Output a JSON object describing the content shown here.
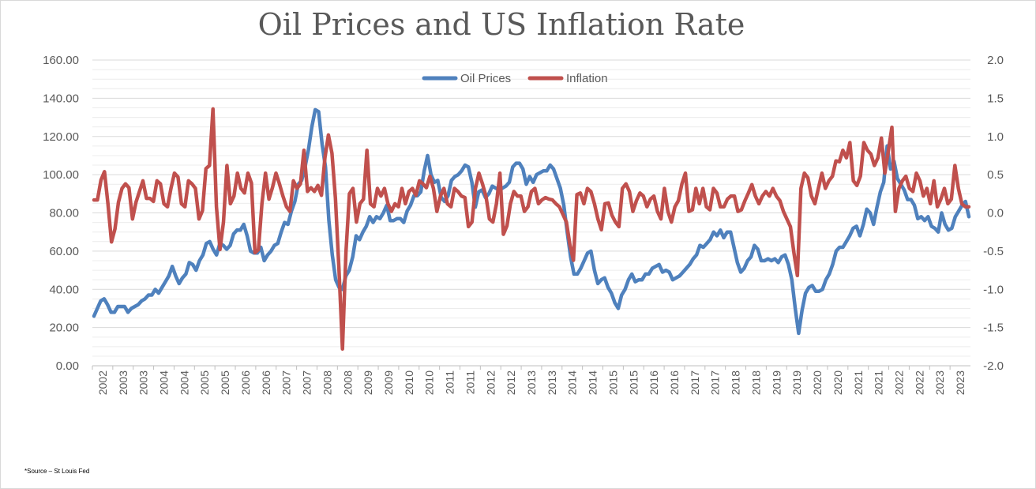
{
  "chart_data": {
    "type": "line",
    "title": "Oil Prices and US Inflation Rate",
    "source_note": "*Source – St Louis Fed",
    "legend": {
      "position": "top-center"
    },
    "grid": true,
    "x_labels": [
      "2002",
      "2003",
      "2003",
      "2004",
      "2004",
      "2005",
      "2005",
      "2006",
      "2006",
      "2007",
      "2007",
      "2008",
      "2008",
      "2009",
      "2009",
      "2010",
      "2010",
      "2011",
      "2011",
      "2012",
      "2012",
      "2013",
      "2013",
      "2014",
      "2014",
      "2015",
      "2015",
      "2016",
      "2016",
      "2017",
      "2017",
      "2018",
      "2018",
      "2019",
      "2019",
      "2020",
      "2020",
      "2021",
      "2021",
      "2022",
      "2022",
      "2023",
      "2023"
    ],
    "y_left": {
      "ticks": [
        "0.00",
        "20.00",
        "40.00",
        "60.00",
        "80.00",
        "100.00",
        "120.00",
        "140.00",
        "160.00"
      ],
      "min": 0,
      "max": 160
    },
    "y_right": {
      "ticks": [
        "-2.0",
        "-1.5",
        "-1.0",
        "-0.5",
        "0.0",
        "0.5",
        "1.0",
        "1.5",
        "2.0"
      ],
      "min": -2,
      "max": 2
    },
    "series": [
      {
        "name": "Oil Prices",
        "axis": "left",
        "color": "#4f81bd",
        "values": [
          26,
          30,
          34,
          35,
          32,
          28,
          28,
          31,
          31,
          31,
          28,
          30,
          31,
          32,
          34,
          35,
          37,
          37,
          40,
          38,
          41,
          44,
          47,
          52,
          47,
          43,
          46,
          48,
          54,
          53,
          50,
          55,
          58,
          64,
          65,
          61,
          58,
          64,
          63,
          61,
          63,
          69,
          71,
          71,
          74,
          68,
          60,
          59,
          59,
          62,
          55,
          58,
          60,
          63,
          64,
          70,
          75,
          74,
          81,
          86,
          95,
          97,
          104,
          113,
          125,
          134,
          133,
          116,
          104,
          76,
          58,
          45,
          41,
          40,
          47,
          50,
          57,
          68,
          66,
          70,
          73,
          78,
          75,
          78,
          77,
          80,
          84,
          76,
          76,
          77,
          77,
          75,
          81,
          84,
          89,
          89,
          91,
          102,
          110,
          100,
          96,
          97,
          88,
          86,
          89,
          97,
          99,
          100,
          102,
          105,
          104,
          96,
          83,
          91,
          92,
          88,
          90,
          94,
          93,
          92,
          93,
          94,
          96,
          104,
          106,
          106,
          103,
          95,
          99,
          96,
          100,
          101,
          102,
          102,
          105,
          103,
          98,
          93,
          84,
          70,
          57,
          48,
          48,
          51,
          55,
          59,
          60,
          50,
          43,
          45,
          46,
          41,
          38,
          33,
          30,
          37,
          40,
          45,
          48,
          44,
          45,
          45,
          48,
          48,
          51,
          52,
          53,
          49,
          50,
          49,
          45,
          46,
          47,
          49,
          51,
          53,
          56,
          58,
          63,
          62,
          64,
          66,
          70,
          68,
          71,
          67,
          70,
          70,
          62,
          54,
          49,
          51,
          55,
          57,
          63,
          61,
          55,
          55,
          56,
          55,
          56,
          54,
          57,
          58,
          53,
          45,
          30,
          17,
          29,
          38,
          41,
          42,
          39,
          39,
          40,
          45,
          48,
          53,
          60,
          62,
          62,
          65,
          68,
          72,
          73,
          68,
          74,
          82,
          80,
          74,
          83,
          91,
          96,
          115,
          103,
          107,
          98,
          95,
          92,
          87,
          87,
          84,
          77,
          78,
          76,
          78,
          73,
          72,
          70,
          80,
          74,
          71,
          72,
          78,
          81,
          84,
          86,
          78
        ]
      },
      {
        "name": "Inflation",
        "axis": "right",
        "color": "#c0504d",
        "values": [
          0.17,
          0.17,
          0.43,
          0.54,
          0.12,
          -0.38,
          -0.21,
          0.14,
          0.32,
          0.38,
          0.33,
          -0.08,
          0.14,
          0.28,
          0.42,
          0.19,
          0.19,
          0.15,
          0.42,
          0.38,
          0.12,
          0.08,
          0.32,
          0.52,
          0.47,
          0.12,
          0.08,
          0.42,
          0.38,
          0.32,
          -0.08,
          0.03,
          0.58,
          0.62,
          1.36,
          0.08,
          -0.48,
          -0.12,
          0.62,
          0.12,
          0.22,
          0.52,
          0.32,
          0.26,
          0.52,
          0.39,
          -0.52,
          -0.48,
          0.12,
          0.52,
          0.18,
          0.33,
          0.52,
          0.38,
          0.22,
          0.08,
          0.02,
          0.42,
          0.32,
          0.38,
          0.82,
          0.28,
          0.33,
          0.28,
          0.36,
          0.23,
          0.72,
          1.02,
          0.78,
          0.19,
          -0.72,
          -1.78,
          -0.52,
          0.25,
          0.32,
          -0.12,
          0.12,
          0.18,
          0.82,
          0.12,
          0.08,
          0.32,
          0.22,
          0.32,
          0.12,
          0.02,
          0.12,
          0.08,
          0.32,
          0.12,
          0.28,
          0.32,
          0.23,
          0.42,
          0.38,
          0.33,
          0.48,
          0.32,
          0.02,
          0.22,
          0.32,
          0.12,
          0.08,
          0.32,
          0.28,
          0.22,
          0.2,
          -0.18,
          -0.12,
          0.32,
          0.52,
          0.38,
          0.22,
          -0.08,
          -0.12,
          0.12,
          0.52,
          -0.28,
          -0.17,
          0.12,
          0.28,
          0.22,
          0.22,
          0.02,
          0.08,
          0.28,
          0.32,
          0.12,
          0.17,
          0.2,
          0.18,
          0.17,
          0.12,
          0.08,
          -0.02,
          -0.12,
          -0.42,
          -0.62,
          0.24,
          0.26,
          0.12,
          0.32,
          0.28,
          0.12,
          -0.08,
          -0.22,
          0.12,
          0.13,
          -0.03,
          -0.12,
          -0.18,
          0.32,
          0.38,
          0.28,
          0.02,
          0.16,
          0.26,
          0.22,
          0.08,
          0.18,
          0.22,
          0.02,
          -0.08,
          0.32,
          0.02,
          -0.12,
          0.08,
          0.16,
          0.38,
          0.52,
          0.02,
          0.04,
          0.32,
          0.12,
          0.32,
          0.08,
          0.04,
          0.32,
          0.26,
          0.08,
          0.08,
          0.18,
          0.22,
          0.22,
          0.02,
          0.04,
          0.16,
          0.26,
          0.37,
          0.22,
          0.12,
          0.22,
          0.28,
          0.22,
          0.32,
          0.22,
          0.16,
          0.02,
          -0.08,
          -0.18,
          -0.52,
          -0.82,
          0.32,
          0.52,
          0.46,
          0.22,
          0.12,
          0.32,
          0.52,
          0.32,
          0.42,
          0.48,
          0.68,
          0.67,
          0.82,
          0.72,
          0.92,
          0.42,
          0.36,
          0.48,
          0.92,
          0.82,
          0.77,
          0.62,
          0.72,
          0.98,
          0.52,
          0.82,
          1.12,
          0.02,
          0.32,
          0.42,
          0.48,
          0.32,
          0.28,
          0.52,
          0.42,
          0.22,
          0.32,
          0.12,
          0.42,
          0.08,
          0.18,
          0.32,
          0.12,
          0.18,
          0.62,
          0.32,
          0.12,
          0.08,
          0.08
        ]
      }
    ]
  }
}
